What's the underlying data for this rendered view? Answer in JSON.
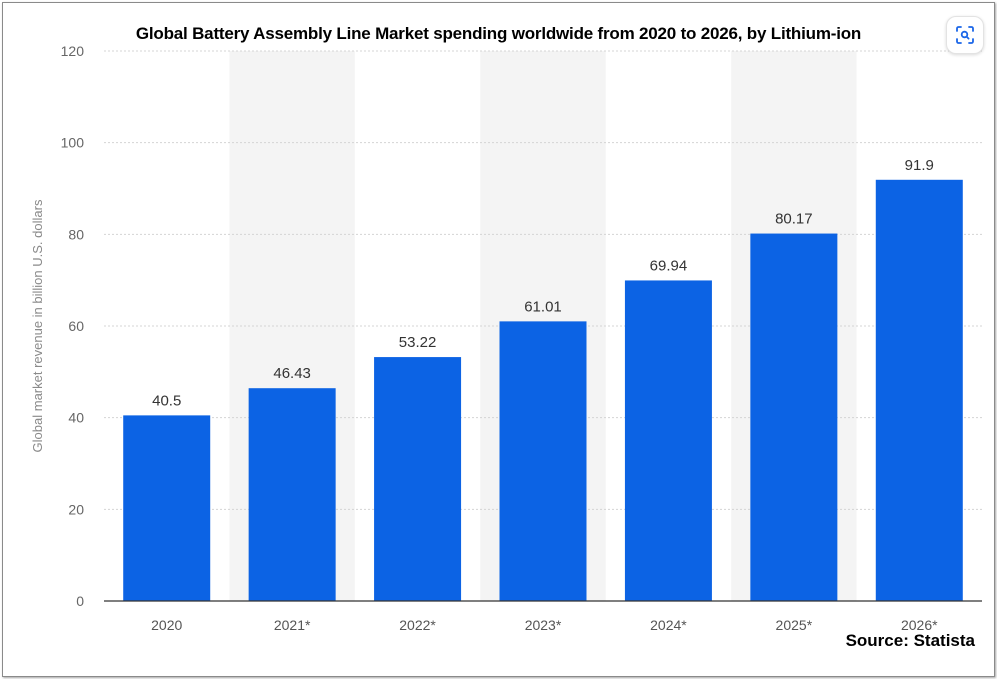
{
  "chart_data": {
    "type": "bar",
    "title": "Global Battery Assembly Line Market spending worldwide from 2020 to 2026, by Lithium-ion",
    "ylabel": "Global market revenue in billion U.S. dollars",
    "xlabel": "",
    "categories": [
      "2020",
      "2021*",
      "2022*",
      "2023*",
      "2024*",
      "2025*",
      "2026*"
    ],
    "values": [
      40.5,
      46.43,
      53.22,
      61.01,
      69.94,
      80.17,
      91.9
    ],
    "value_labels": [
      "40.5",
      "46.43",
      "53.22",
      "61.01",
      "69.94",
      "80.17",
      "91.9"
    ],
    "ylim": [
      0,
      120
    ],
    "yticks": [
      "0",
      "20",
      "40",
      "60",
      "80",
      "100",
      "120"
    ],
    "ytick_values": [
      0,
      20,
      40,
      60,
      80,
      100,
      120
    ],
    "grid": true,
    "bar_color": "#0c63e4",
    "shaded_band_color": "#f4f4f4",
    "source": "Source: Statista"
  },
  "toolbar": {
    "scan_icon": "scan-search-icon"
  }
}
